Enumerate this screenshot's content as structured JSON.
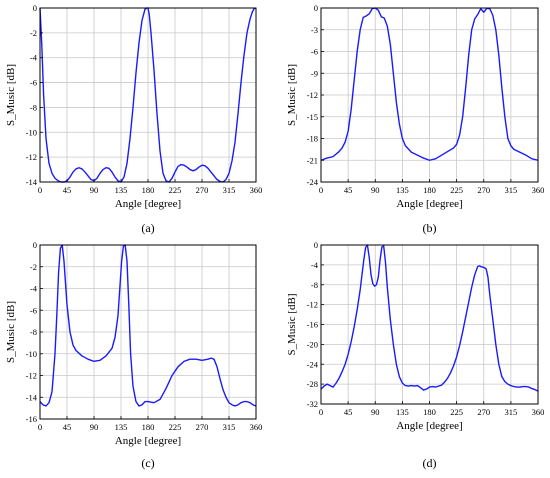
{
  "chart_data": [
    {
      "type": "line",
      "caption": "(a)",
      "xlabel": "Angle [degree]",
      "ylabel": "S_Music [dB]",
      "xlim": [
        0,
        360
      ],
      "ylim": [
        -14,
        0
      ],
      "xticks": [
        0,
        45,
        90,
        135,
        180,
        225,
        270,
        315,
        360
      ],
      "yticks": [
        -14,
        -12,
        -10,
        -8,
        -6,
        -4,
        -2,
        0
      ],
      "grid": true,
      "color": "#1a1aff",
      "series": [
        {
          "x": [
            0,
            3,
            6,
            10,
            15,
            20,
            25,
            30,
            35,
            40,
            45,
            50,
            55,
            60,
            65,
            70,
            75,
            80,
            85,
            90,
            95,
            100,
            105,
            110,
            115,
            120,
            125,
            130,
            135,
            140,
            145,
            150,
            155,
            160,
            165,
            170,
            175,
            178,
            180,
            182,
            185,
            190,
            195,
            200,
            205,
            210,
            215,
            220,
            225,
            230,
            235,
            240,
            245,
            250,
            255,
            260,
            265,
            270,
            275,
            280,
            285,
            290,
            295,
            300,
            305,
            310,
            315,
            320,
            325,
            330,
            335,
            340,
            345,
            350,
            354,
            357,
            360
          ],
          "values": [
            0,
            -3,
            -7,
            -10.5,
            -12.5,
            -13.3,
            -13.7,
            -13.9,
            -14,
            -14,
            -13.9,
            -13.6,
            -13.2,
            -12.95,
            -12.85,
            -12.95,
            -13.2,
            -13.5,
            -13.8,
            -13.9,
            -13.7,
            -13.3,
            -13,
            -12.85,
            -12.9,
            -13.2,
            -13.6,
            -13.9,
            -14,
            -13.6,
            -12.5,
            -10.5,
            -8,
            -5.2,
            -2.8,
            -1,
            -0.1,
            0,
            0,
            -0.5,
            -2,
            -5,
            -8.5,
            -11.5,
            -13.3,
            -13.9,
            -14,
            -13.7,
            -13.2,
            -12.75,
            -12.6,
            -12.65,
            -12.8,
            -13,
            -13.1,
            -13,
            -12.8,
            -12.65,
            -12.7,
            -12.9,
            -13.2,
            -13.5,
            -13.8,
            -13.95,
            -14,
            -13.8,
            -13.3,
            -12.3,
            -10.8,
            -8.5,
            -6,
            -3.8,
            -2,
            -0.9,
            -0.3,
            -0.05,
            0
          ]
        }
      ]
    },
    {
      "type": "line",
      "caption": "(b)",
      "xlabel": "Angle [degree]",
      "ylabel": "S_Music [dB]",
      "xlim": [
        0,
        360
      ],
      "ylim": [
        -24,
        0
      ],
      "xticks": [
        0,
        45,
        90,
        135,
        180,
        225,
        270,
        315,
        360
      ],
      "yticks": [
        -24,
        -21,
        -18,
        -15,
        -12,
        -9,
        -6,
        -3,
        0
      ],
      "grid": true,
      "color": "#1a1aff",
      "series": [
        {
          "x": [
            0,
            10,
            20,
            30,
            35,
            40,
            45,
            50,
            55,
            60,
            65,
            70,
            75,
            80,
            85,
            90,
            95,
            100,
            105,
            110,
            115,
            120,
            125,
            130,
            135,
            140,
            150,
            160,
            170,
            180,
            190,
            200,
            210,
            220,
            225,
            230,
            235,
            240,
            245,
            250,
            255,
            260,
            265,
            270,
            275,
            280,
            285,
            290,
            295,
            300,
            305,
            310,
            315,
            320,
            330,
            340,
            350,
            360
          ],
          "values": [
            -21,
            -20.7,
            -20.5,
            -19.8,
            -19.3,
            -18.5,
            -17,
            -14,
            -10,
            -6,
            -3,
            -1.3,
            -1.1,
            -0.8,
            -0.1,
            0,
            -0.3,
            -1.2,
            -1.4,
            -2.5,
            -5,
            -9,
            -13,
            -16,
            -18,
            -19,
            -19.9,
            -20.3,
            -20.7,
            -21,
            -20.8,
            -20.3,
            -19.8,
            -19.3,
            -18.8,
            -17.5,
            -15,
            -11,
            -6.5,
            -3,
            -1.5,
            -0.9,
            -0.1,
            -0.6,
            -0.05,
            -0.1,
            -1,
            -3,
            -6.5,
            -11,
            -15,
            -18,
            -19,
            -19.5,
            -19.9,
            -20.3,
            -20.8,
            -21
          ]
        }
      ]
    },
    {
      "type": "line",
      "caption": "(c)",
      "xlabel": "Angle [degree]",
      "ylabel": "S_Music [dB]",
      "xlim": [
        0,
        360
      ],
      "ylim": [
        -16,
        0
      ],
      "xticks": [
        0,
        45,
        90,
        135,
        180,
        225,
        270,
        315,
        360
      ],
      "yticks": [
        -16,
        -14,
        -12,
        -10,
        -8,
        -6,
        -4,
        -2,
        0
      ],
      "grid": true,
      "color": "#1a1aff",
      "series": [
        {
          "x": [
            0,
            5,
            10,
            15,
            20,
            25,
            28,
            31,
            34,
            37,
            40,
            45,
            50,
            55,
            60,
            70,
            80,
            90,
            100,
            110,
            120,
            125,
            130,
            133,
            136,
            139,
            142,
            145,
            148,
            151,
            155,
            160,
            165,
            170,
            175,
            180,
            190,
            200,
            210,
            220,
            230,
            240,
            250,
            260,
            270,
            280,
            285,
            290,
            295,
            300,
            305,
            310,
            315,
            320,
            325,
            330,
            335,
            340,
            345,
            350,
            355,
            360
          ],
          "values": [
            -14.4,
            -14.7,
            -14.8,
            -14.5,
            -13.5,
            -10,
            -6.5,
            -2.5,
            -0.3,
            0,
            -1.5,
            -5.5,
            -8,
            -9.2,
            -9.7,
            -10.2,
            -10.5,
            -10.7,
            -10.6,
            -10.2,
            -9.5,
            -8.5,
            -6.5,
            -4,
            -1.5,
            -0.1,
            0,
            -1.5,
            -5.5,
            -10,
            -13,
            -14.4,
            -14.8,
            -14.7,
            -14.4,
            -14.4,
            -14.5,
            -14.2,
            -13.2,
            -12,
            -11.2,
            -10.7,
            -10.5,
            -10.5,
            -10.6,
            -10.5,
            -10.4,
            -10.5,
            -11.2,
            -12.3,
            -13.3,
            -14,
            -14.5,
            -14.7,
            -14.8,
            -14.7,
            -14.5,
            -14.4,
            -14.4,
            -14.5,
            -14.7,
            -14.8
          ]
        }
      ]
    },
    {
      "type": "line",
      "caption": "(d)",
      "xlabel": "Angle [degree]",
      "ylabel": "S_Music [dB]",
      "xlim": [
        0,
        360
      ],
      "ylim": [
        -32,
        0
      ],
      "xticks": [
        0,
        45,
        90,
        135,
        180,
        225,
        270,
        315,
        360
      ],
      "yticks": [
        -32,
        -28,
        -24,
        -20,
        -16,
        -12,
        -8,
        -4,
        0
      ],
      "grid": true,
      "color": "#1a1aff",
      "series": [
        {
          "x": [
            0,
            5,
            10,
            15,
            20,
            25,
            30,
            35,
            40,
            45,
            50,
            55,
            60,
            65,
            68,
            71,
            74,
            77,
            80,
            83,
            86,
            89,
            92,
            95,
            98,
            101,
            104,
            107,
            110,
            115,
            120,
            125,
            130,
            135,
            140,
            145,
            150,
            155,
            160,
            165,
            170,
            175,
            180,
            185,
            190,
            195,
            200,
            205,
            210,
            215,
            220,
            225,
            230,
            235,
            240,
            245,
            250,
            255,
            260,
            263,
            266,
            270,
            274,
            277,
            280,
            285,
            290,
            295,
            300,
            305,
            310,
            315,
            320,
            325,
            330,
            335,
            340,
            345,
            350,
            355,
            360
          ],
          "values": [
            -29,
            -28.4,
            -28,
            -28.3,
            -28.6,
            -27.8,
            -26.8,
            -25.5,
            -24,
            -22,
            -19.5,
            -16.5,
            -13,
            -9,
            -6,
            -3,
            -0.5,
            0,
            -2.5,
            -6,
            -7.8,
            -8.3,
            -8,
            -6.5,
            -3,
            -0.4,
            -0.2,
            -3.5,
            -8.5,
            -15,
            -20,
            -24,
            -26.5,
            -27.8,
            -28.3,
            -28.4,
            -28.3,
            -28.4,
            -28.3,
            -28.7,
            -29.2,
            -29,
            -28.6,
            -28.5,
            -28.6,
            -28.4,
            -28.2,
            -27.6,
            -26.8,
            -25.7,
            -24.3,
            -22.5,
            -20.2,
            -17.5,
            -14.5,
            -11.5,
            -8.5,
            -6,
            -4.3,
            -4.2,
            -4.4,
            -4.5,
            -4.8,
            -6.5,
            -10,
            -15,
            -20,
            -24,
            -26.5,
            -27.5,
            -28,
            -28.3,
            -28.5,
            -28.6,
            -28.6,
            -28.5,
            -28.5,
            -28.6,
            -28.9,
            -29.1,
            -29.4
          ]
        }
      ]
    }
  ]
}
